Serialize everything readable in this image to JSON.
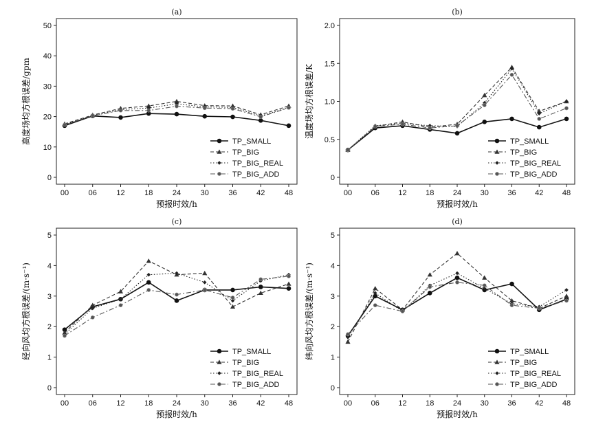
{
  "chart_data": [
    {
      "type": "line",
      "title": "(a)",
      "xlabel": "预报时效/h",
      "ylabel": "高度场均方根误差/gpm",
      "categories": [
        "00",
        "06",
        "12",
        "18",
        "24",
        "30",
        "36",
        "42",
        "48"
      ],
      "ylim": [
        0,
        50
      ],
      "yticks": [
        "0",
        "10",
        "20",
        "30",
        "40",
        "50"
      ],
      "grid": false,
      "legend_position": "bottom-right",
      "series": [
        {
          "name": "TP_SMALL",
          "values": [
            17.0,
            20.2,
            19.7,
            21.0,
            20.8,
            20.1,
            19.9,
            18.7,
            17.0
          ]
        },
        {
          "name": "TP_BIG",
          "values": [
            17.6,
            20.5,
            22.7,
            23.5,
            25.0,
            23.6,
            23.5,
            20.6,
            23.5
          ]
        },
        {
          "name": "TP_BIG_REAL",
          "values": [
            17.4,
            20.3,
            22.3,
            22.8,
            24.2,
            23.2,
            23.0,
            20.2,
            23.0
          ]
        },
        {
          "name": "TP_BIG_ADD",
          "values": [
            17.3,
            20.3,
            22.0,
            22.0,
            23.4,
            22.8,
            22.6,
            19.9,
            22.9
          ]
        }
      ]
    },
    {
      "type": "line",
      "title": "(b)",
      "xlabel": "预报时效/h",
      "ylabel": "温度场均方根误差/K",
      "categories": [
        "00",
        "06",
        "12",
        "18",
        "24",
        "30",
        "36",
        "42",
        "48"
      ],
      "ylim": [
        0,
        2.0
      ],
      "yticks": [
        "0",
        "0.5",
        "1.0",
        "1.5",
        "2.0"
      ],
      "grid": false,
      "legend_position": "bottom-right",
      "series": [
        {
          "name": "TP_SMALL",
          "values": [
            0.36,
            0.65,
            0.68,
            0.63,
            0.58,
            0.73,
            0.77,
            0.66,
            0.77
          ]
        },
        {
          "name": "TP_BIG",
          "values": [
            0.36,
            0.67,
            0.73,
            0.66,
            0.7,
            1.08,
            1.45,
            0.87,
            1.0
          ]
        },
        {
          "name": "TP_BIG_REAL",
          "values": [
            0.36,
            0.68,
            0.71,
            0.68,
            0.67,
            0.98,
            1.43,
            0.84,
            1.0
          ]
        },
        {
          "name": "TP_BIG_ADD",
          "values": [
            0.36,
            0.67,
            0.7,
            0.65,
            0.68,
            0.95,
            1.35,
            0.77,
            0.91
          ]
        }
      ]
    },
    {
      "type": "line",
      "title": "(c)",
      "xlabel": "预报时效/h",
      "ylabel": "经向风均方根误差/(m·s⁻¹)",
      "categories": [
        "00",
        "06",
        "12",
        "18",
        "24",
        "30",
        "36",
        "42",
        "48"
      ],
      "ylim": [
        0,
        5
      ],
      "yticks": [
        "0",
        "1",
        "2",
        "3",
        "4",
        "5"
      ],
      "grid": false,
      "legend_position": "bottom-right",
      "series": [
        {
          "name": "TP_SMALL",
          "values": [
            1.9,
            2.65,
            2.9,
            3.45,
            2.85,
            3.2,
            3.2,
            3.3,
            3.25
          ]
        },
        {
          "name": "TP_BIG",
          "values": [
            1.8,
            2.7,
            3.15,
            4.15,
            3.7,
            3.75,
            2.65,
            3.1,
            3.4
          ]
        },
        {
          "name": "TP_BIG_REAL",
          "values": [
            1.75,
            2.6,
            2.9,
            3.7,
            3.75,
            3.45,
            2.85,
            3.5,
            3.7
          ]
        },
        {
          "name": "TP_BIG_ADD",
          "values": [
            1.7,
            2.3,
            2.7,
            3.2,
            3.05,
            3.2,
            2.95,
            3.55,
            3.65
          ]
        }
      ]
    },
    {
      "type": "line",
      "title": "(d)",
      "xlabel": "预报时效/h",
      "ylabel": "纬向风均方根误差/(m·s⁻¹)",
      "categories": [
        "00",
        "06",
        "12",
        "18",
        "24",
        "30",
        "36",
        "42",
        "48"
      ],
      "ylim": [
        0,
        5
      ],
      "yticks": [
        "0",
        "1",
        "2",
        "3",
        "4",
        "5"
      ],
      "grid": false,
      "legend_position": "bottom-right",
      "series": [
        {
          "name": "TP_SMALL",
          "values": [
            1.7,
            3.0,
            2.55,
            3.1,
            3.6,
            3.2,
            3.4,
            2.55,
            2.9
          ]
        },
        {
          "name": "TP_BIG",
          "values": [
            1.5,
            3.25,
            2.55,
            3.7,
            4.4,
            3.6,
            2.85,
            2.6,
            3.0
          ]
        },
        {
          "name": "TP_BIG_REAL",
          "values": [
            1.65,
            3.1,
            2.5,
            3.35,
            3.75,
            3.25,
            2.75,
            2.65,
            3.2
          ]
        },
        {
          "name": "TP_BIG_ADD",
          "values": [
            1.75,
            2.7,
            2.5,
            3.3,
            3.45,
            3.35,
            2.7,
            2.6,
            2.85
          ]
        }
      ]
    }
  ],
  "legend_entries": [
    "TP_SMALL",
    "TP_BIG",
    "TP_BIG_REAL",
    "TP_BIG_ADD"
  ],
  "series_styles": [
    {
      "color": "#111111",
      "dash": "",
      "marker": "circle",
      "width": 1.6
    },
    {
      "color": "#333333",
      "dash": "5,3",
      "marker": "triangle",
      "width": 1.1
    },
    {
      "color": "#222222",
      "dash": "1.5,2.5",
      "marker": "diamond",
      "width": 1.1
    },
    {
      "color": "#555555",
      "dash": "7,3,2,3",
      "marker": "square-dot",
      "width": 1.1
    }
  ]
}
